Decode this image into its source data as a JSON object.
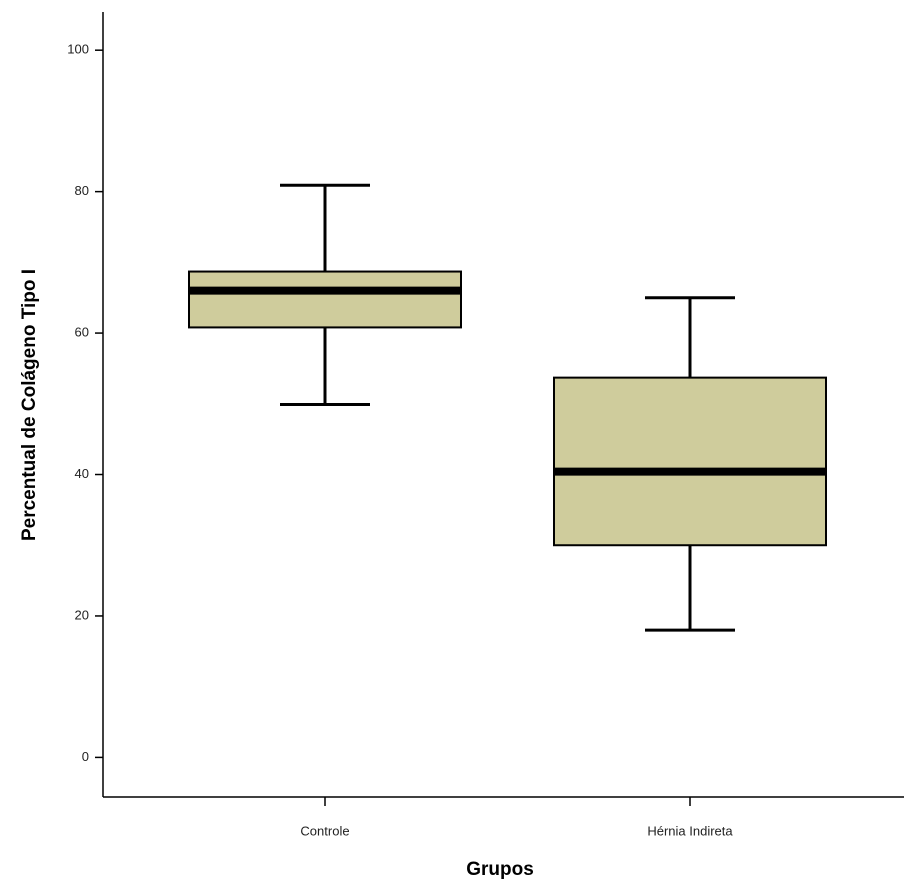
{
  "chart_data": {
    "type": "box",
    "y_label": "Percentual de Colágeno Tipo I",
    "x_label": "Grupos",
    "categories": [
      "Controle",
      "Hérnia Indireta"
    ],
    "min": [
      49.9,
      18
    ],
    "q1": [
      60.8,
      30
    ],
    "median": [
      66,
      40.4
    ],
    "q3": [
      68.7,
      53.7
    ],
    "max": [
      80.9,
      65
    ],
    "color": "#cfcc9c",
    "ylim": [
      -5.6,
      105.4
    ],
    "yticks": [
      0,
      20,
      40,
      60,
      80,
      100
    ]
  }
}
